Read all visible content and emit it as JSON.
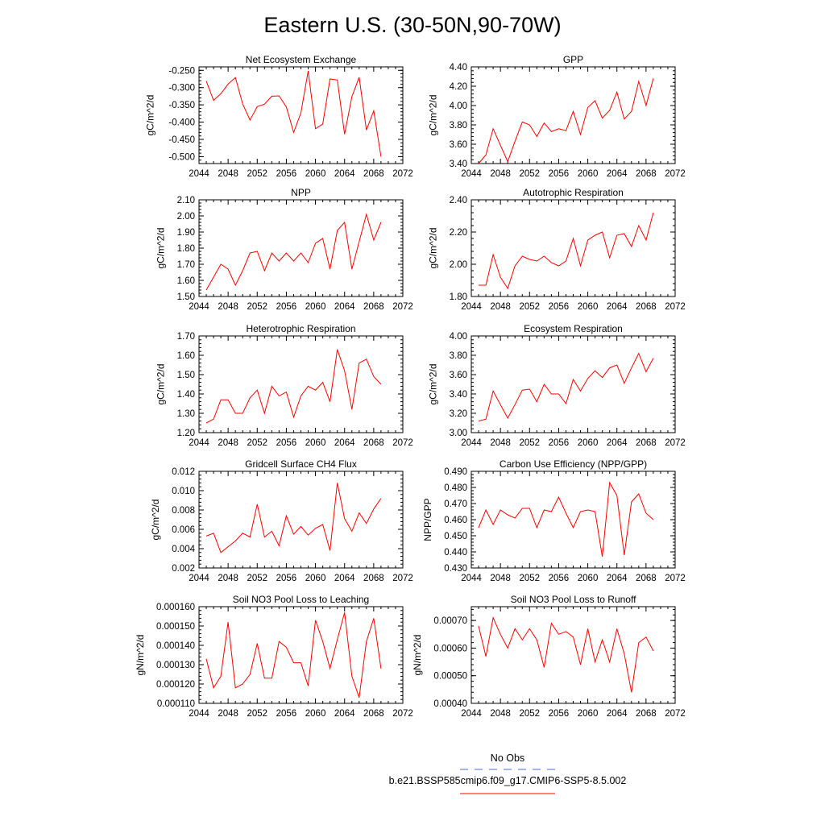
{
  "figure": {
    "title": "Eastern U.S. (30-50N,90-70W)"
  },
  "legend": {
    "obs_label": "No Obs",
    "obs_color": "#4a6cd4",
    "model_label": "b.e21.BSSP585cmip6.f09_g17.CMIP6-SSP5-8.5.002",
    "model_color": "#ff0000"
  },
  "chart_data": [
    {
      "type": "line",
      "title": "Net Ecosystem Exchange",
      "ylabel": "gC/m^2/d",
      "xlim": [
        2044,
        2072
      ],
      "xticks": [
        "2044",
        "2048",
        "2052",
        "2056",
        "2060",
        "2064",
        "2068",
        "2072"
      ],
      "ylim": [
        -0.52,
        -0.24
      ],
      "yticks": [
        "-0.250",
        "-0.300",
        "-0.350",
        "-0.400",
        "-0.450",
        "-0.500"
      ],
      "x": [
        2045,
        2046,
        2047,
        2048,
        2049,
        2050,
        2051,
        2052,
        2053,
        2054,
        2055,
        2056,
        2057,
        2058,
        2059,
        2060,
        2061,
        2062,
        2063,
        2064,
        2065,
        2066,
        2067,
        2068,
        2069
      ],
      "series": [
        {
          "values": [
            -0.281,
            -0.337,
            -0.318,
            -0.29,
            -0.271,
            -0.347,
            -0.394,
            -0.355,
            -0.348,
            -0.325,
            -0.324,
            -0.356,
            -0.43,
            -0.373,
            -0.252,
            -0.419,
            -0.406,
            -0.275,
            -0.278,
            -0.435,
            -0.326,
            -0.27,
            -0.423,
            -0.367,
            -0.5
          ],
          "color": "#ff0000"
        }
      ]
    },
    {
      "type": "line",
      "title": "GPP",
      "ylabel": "gC/m^2/d",
      "xlim": [
        2044,
        2072
      ],
      "xticks": [
        "2044",
        "2048",
        "2052",
        "2056",
        "2060",
        "2064",
        "2068",
        "2072"
      ],
      "ylim": [
        3.4,
        4.4
      ],
      "yticks": [
        "4.40",
        "4.20",
        "4.00",
        "3.80",
        "3.60",
        "3.40"
      ],
      "x": [
        2045,
        2046,
        2047,
        2048,
        2049,
        2050,
        2051,
        2052,
        2053,
        2054,
        2055,
        2056,
        2057,
        2058,
        2059,
        2060,
        2061,
        2062,
        2063,
        2064,
        2065,
        2066,
        2067,
        2068,
        2069
      ],
      "series": [
        {
          "values": [
            3.4,
            3.49,
            3.76,
            3.59,
            3.42,
            3.63,
            3.83,
            3.8,
            3.68,
            3.82,
            3.73,
            3.76,
            3.74,
            3.94,
            3.7,
            3.98,
            4.05,
            3.87,
            3.95,
            4.14,
            3.86,
            3.94,
            4.25,
            4.0,
            4.28
          ],
          "color": "#ff0000"
        }
      ]
    },
    {
      "type": "line",
      "title": "NPP",
      "ylabel": "gC/m^2/d",
      "xlim": [
        2044,
        2072
      ],
      "xticks": [
        "2044",
        "2048",
        "2052",
        "2056",
        "2060",
        "2064",
        "2068",
        "2072"
      ],
      "ylim": [
        1.5,
        2.1
      ],
      "yticks": [
        "2.10",
        "2.00",
        "1.90",
        "1.80",
        "1.70",
        "1.60",
        "1.50"
      ],
      "x": [
        2045,
        2046,
        2047,
        2048,
        2049,
        2050,
        2051,
        2052,
        2053,
        2054,
        2055,
        2056,
        2057,
        2058,
        2059,
        2060,
        2061,
        2062,
        2063,
        2064,
        2065,
        2066,
        2067,
        2068,
        2069
      ],
      "series": [
        {
          "values": [
            1.54,
            1.62,
            1.7,
            1.67,
            1.57,
            1.66,
            1.77,
            1.78,
            1.66,
            1.77,
            1.72,
            1.77,
            1.72,
            1.77,
            1.71,
            1.83,
            1.86,
            1.67,
            1.91,
            1.96,
            1.67,
            1.84,
            2.01,
            1.85,
            1.96
          ],
          "color": "#ff0000"
        }
      ]
    },
    {
      "type": "line",
      "title": "Autotrophic Respiration",
      "ylabel": "gC/m^2/d",
      "xlim": [
        2044,
        2072
      ],
      "xticks": [
        "2044",
        "2048",
        "2052",
        "2056",
        "2060",
        "2064",
        "2068",
        "2072"
      ],
      "ylim": [
        1.8,
        2.4
      ],
      "yticks": [
        "2.40",
        "2.20",
        "2.00",
        "1.80"
      ],
      "x": [
        2045,
        2046,
        2047,
        2048,
        2049,
        2050,
        2051,
        2052,
        2053,
        2054,
        2055,
        2056,
        2057,
        2058,
        2059,
        2060,
        2061,
        2062,
        2063,
        2064,
        2065,
        2066,
        2067,
        2068,
        2069
      ],
      "series": [
        {
          "values": [
            1.87,
            1.87,
            2.06,
            1.92,
            1.85,
            1.99,
            2.05,
            2.03,
            2.02,
            2.05,
            2.01,
            1.99,
            2.02,
            2.16,
            1.99,
            2.15,
            2.18,
            2.2,
            2.04,
            2.18,
            2.19,
            2.11,
            2.24,
            2.15,
            2.32
          ],
          "color": "#ff0000"
        }
      ]
    },
    {
      "type": "line",
      "title": "Heterotrophic Respiration",
      "ylabel": "gC/m^2/d",
      "xlim": [
        2044,
        2072
      ],
      "xticks": [
        "2044",
        "2048",
        "2052",
        "2056",
        "2060",
        "2064",
        "2068",
        "2072"
      ],
      "ylim": [
        1.2,
        1.7
      ],
      "yticks": [
        "1.70",
        "1.60",
        "1.50",
        "1.40",
        "1.30",
        "1.20"
      ],
      "x": [
        2045,
        2046,
        2047,
        2048,
        2049,
        2050,
        2051,
        2052,
        2053,
        2054,
        2055,
        2056,
        2057,
        2058,
        2059,
        2060,
        2061,
        2062,
        2063,
        2064,
        2065,
        2066,
        2067,
        2068,
        2069
      ],
      "series": [
        {
          "values": [
            1.25,
            1.27,
            1.37,
            1.37,
            1.3,
            1.3,
            1.38,
            1.42,
            1.3,
            1.44,
            1.39,
            1.41,
            1.28,
            1.39,
            1.44,
            1.42,
            1.46,
            1.36,
            1.63,
            1.52,
            1.32,
            1.56,
            1.58,
            1.49,
            1.45
          ],
          "color": "#ff0000"
        }
      ]
    },
    {
      "type": "line",
      "title": "Ecosystem Respiration",
      "ylabel": "gC/m^2/d",
      "xlim": [
        2044,
        2072
      ],
      "xticks": [
        "2044",
        "2048",
        "2052",
        "2056",
        "2060",
        "2064",
        "2068",
        "2072"
      ],
      "ylim": [
        3.0,
        4.0
      ],
      "yticks": [
        "4.00",
        "3.80",
        "3.60",
        "3.40",
        "3.20",
        "3.00"
      ],
      "x": [
        2045,
        2046,
        2047,
        2048,
        2049,
        2050,
        2051,
        2052,
        2053,
        2054,
        2055,
        2056,
        2057,
        2058,
        2059,
        2060,
        2061,
        2062,
        2063,
        2064,
        2065,
        2066,
        2067,
        2068,
        2069
      ],
      "series": [
        {
          "values": [
            3.12,
            3.14,
            3.43,
            3.29,
            3.15,
            3.29,
            3.44,
            3.45,
            3.32,
            3.5,
            3.4,
            3.4,
            3.3,
            3.55,
            3.43,
            3.56,
            3.64,
            3.57,
            3.67,
            3.7,
            3.51,
            3.67,
            3.82,
            3.63,
            3.77
          ],
          "color": "#ff0000"
        }
      ]
    },
    {
      "type": "line",
      "title": "Gridcell Surface CH4 Flux",
      "ylabel": "gC/m^2/d",
      "xlim": [
        2044,
        2072
      ],
      "xticks": [
        "2044",
        "2048",
        "2052",
        "2056",
        "2060",
        "2064",
        "2068",
        "2072"
      ],
      "ylim": [
        0.002,
        0.012
      ],
      "yticks": [
        "0.012",
        "0.010",
        "0.008",
        "0.006",
        "0.004",
        "0.002"
      ],
      "x": [
        2045,
        2046,
        2047,
        2048,
        2049,
        2050,
        2051,
        2052,
        2053,
        2054,
        2055,
        2056,
        2057,
        2058,
        2059,
        2060,
        2061,
        2062,
        2063,
        2064,
        2065,
        2066,
        2067,
        2068,
        2069
      ],
      "series": [
        {
          "values": [
            0.0053,
            0.0056,
            0.0036,
            0.0042,
            0.0048,
            0.0056,
            0.0052,
            0.0086,
            0.0052,
            0.0058,
            0.0043,
            0.0074,
            0.0055,
            0.0063,
            0.0054,
            0.0061,
            0.0065,
            0.0038,
            0.0108,
            0.0071,
            0.0058,
            0.0077,
            0.0066,
            0.0081,
            0.0092
          ],
          "color": "#ff0000"
        }
      ]
    },
    {
      "type": "line",
      "title": "Carbon Use Efficiency (NPP/GPP)",
      "ylabel": "NPP/GPP",
      "xlim": [
        2044,
        2072
      ],
      "xticks": [
        "2044",
        "2048",
        "2052",
        "2056",
        "2060",
        "2064",
        "2068",
        "2072"
      ],
      "ylim": [
        0.43,
        0.49
      ],
      "yticks": [
        "0.490",
        "0.480",
        "0.470",
        "0.460",
        "0.450",
        "0.440",
        "0.430"
      ],
      "x": [
        2045,
        2046,
        2047,
        2048,
        2049,
        2050,
        2051,
        2052,
        2053,
        2054,
        2055,
        2056,
        2057,
        2058,
        2059,
        2060,
        2061,
        2062,
        2063,
        2064,
        2065,
        2066,
        2067,
        2068,
        2069
      ],
      "series": [
        {
          "values": [
            0.455,
            0.466,
            0.457,
            0.466,
            0.463,
            0.461,
            0.467,
            0.467,
            0.455,
            0.466,
            0.465,
            0.474,
            0.464,
            0.455,
            0.465,
            0.466,
            0.465,
            0.437,
            0.483,
            0.475,
            0.438,
            0.471,
            0.476,
            0.464,
            0.46
          ],
          "color": "#ff0000"
        }
      ]
    },
    {
      "type": "line",
      "title": "Soil NO3 Pool Loss to Leaching",
      "ylabel": "gN/m^2/d",
      "xlim": [
        2044,
        2072
      ],
      "xticks": [
        "2044",
        "2048",
        "2052",
        "2056",
        "2060",
        "2064",
        "2068",
        "2072"
      ],
      "ylim": [
        0.00011,
        0.00016
      ],
      "yticks": [
        "0.000160",
        "0.000150",
        "0.000140",
        "0.000130",
        "0.000120",
        "0.000110"
      ],
      "x": [
        2045,
        2046,
        2047,
        2048,
        2049,
        2050,
        2051,
        2052,
        2053,
        2054,
        2055,
        2056,
        2057,
        2058,
        2059,
        2060,
        2061,
        2062,
        2063,
        2064,
        2065,
        2066,
        2067,
        2068,
        2069
      ],
      "series": [
        {
          "values": [
            0.000133,
            0.000118,
            0.000124,
            0.000152,
            0.000118,
            0.00012,
            0.000125,
            0.000141,
            0.000123,
            0.000123,
            0.000142,
            0.000139,
            0.000131,
            0.000131,
            0.000119,
            0.000153,
            0.000142,
            0.000128,
            0.000143,
            0.000157,
            0.000124,
            0.000113,
            0.000142,
            0.000154,
            0.000128
          ],
          "color": "#ff0000"
        }
      ]
    },
    {
      "type": "line",
      "title": "Soil NO3 Pool Loss to Runoff",
      "ylabel": "gN/m^2/d",
      "xlim": [
        2044,
        2072
      ],
      "xticks": [
        "2044",
        "2048",
        "2052",
        "2056",
        "2060",
        "2064",
        "2068",
        "2072"
      ],
      "ylim": [
        0.0004,
        0.00075
      ],
      "yticks": [
        "0.00070",
        "0.00060",
        "0.00050",
        "0.00040"
      ],
      "x": [
        2045,
        2046,
        2047,
        2048,
        2049,
        2050,
        2051,
        2052,
        2053,
        2054,
        2055,
        2056,
        2057,
        2058,
        2059,
        2060,
        2061,
        2062,
        2063,
        2064,
        2065,
        2066,
        2067,
        2068,
        2069
      ],
      "series": [
        {
          "values": [
            0.00068,
            0.00057,
            0.00071,
            0.00065,
            0.0006,
            0.00067,
            0.00063,
            0.00067,
            0.00063,
            0.00053,
            0.00069,
            0.00065,
            0.00066,
            0.00064,
            0.00054,
            0.00067,
            0.00055,
            0.00063,
            0.00055,
            0.00067,
            0.00058,
            0.00044,
            0.00062,
            0.00064,
            0.00059
          ],
          "color": "#ff0000"
        }
      ]
    }
  ]
}
